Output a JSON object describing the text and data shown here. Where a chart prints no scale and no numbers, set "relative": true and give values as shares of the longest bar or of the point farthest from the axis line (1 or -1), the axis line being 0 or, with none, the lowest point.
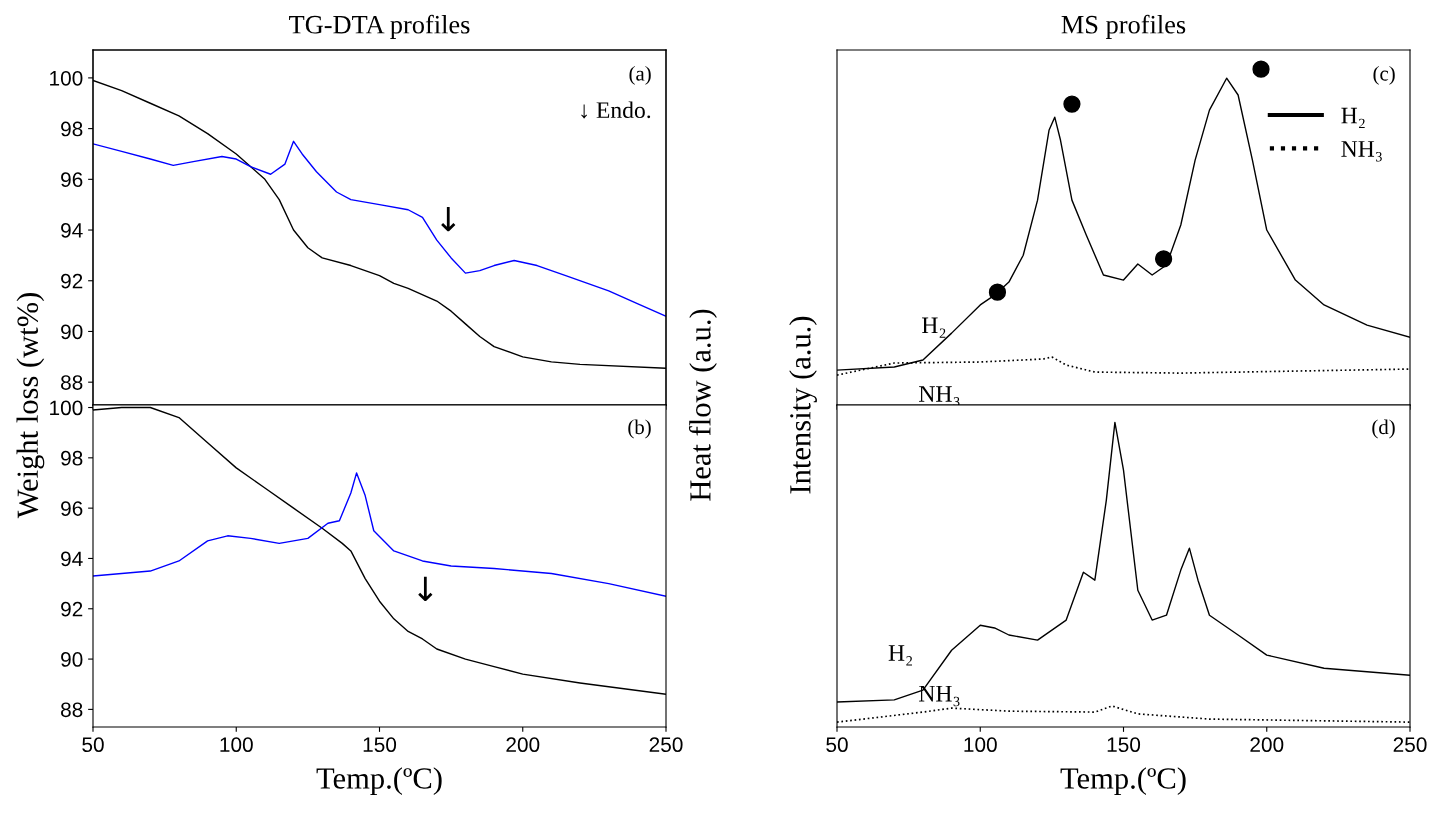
{
  "chart_data": [
    {
      "type": "line",
      "title": "TG-DTA profiles",
      "ylabel": "Weight loss (wt%)",
      "y2label": "Heat flow (a.u.)",
      "xlim": [
        50,
        250
      ],
      "xticks": [
        50,
        100,
        150,
        200,
        250
      ],
      "ylim": [
        87.1,
        101.1
      ],
      "yticks": [
        88,
        90,
        92,
        94,
        96,
        98,
        100
      ],
      "tick_labels": "y",
      "grid": false,
      "legend": false,
      "line_style": "solid",
      "annotations": [
        "(a)",
        "↓ Endo.",
        "↓"
      ],
      "series": [
        {
          "color": "#000000",
          "x": [
            50,
            60,
            70,
            80,
            90,
            100,
            110,
            115,
            120,
            125,
            130,
            140,
            150,
            155,
            160,
            170,
            175,
            180,
            185,
            190,
            200,
            210,
            220,
            250
          ],
          "values": [
            99.9,
            99.5,
            99.0,
            98.5,
            97.8,
            97.0,
            96.0,
            95.2,
            94.0,
            93.3,
            92.9,
            92.6,
            92.2,
            91.9,
            91.7,
            91.2,
            90.8,
            90.3,
            89.8,
            89.4,
            89.0,
            88.8,
            88.7,
            88.55
          ]
        },
        {
          "color": "#0000ff",
          "x": [
            50,
            60,
            70,
            78,
            85,
            95,
            100,
            105,
            112,
            117,
            120,
            123,
            128,
            135,
            140,
            150,
            160,
            165,
            170,
            175,
            180,
            185,
            190,
            197,
            205,
            215,
            230,
            240,
            250
          ],
          "values": [
            97.4,
            97.1,
            96.8,
            96.55,
            96.7,
            96.9,
            96.8,
            96.5,
            96.2,
            96.6,
            97.5,
            97.0,
            96.3,
            95.5,
            95.2,
            95.0,
            94.8,
            94.5,
            93.6,
            92.9,
            92.3,
            92.4,
            92.6,
            92.8,
            92.6,
            92.2,
            91.6,
            91.1,
            90.6
          ]
        }
      ]
    },
    {
      "type": "line",
      "xlabel": "Temp.(ºC)",
      "xlim": [
        50,
        250
      ],
      "xticks": [
        50,
        100,
        150,
        200,
        250
      ],
      "ylim": [
        87.3,
        100.1
      ],
      "yticks": [
        88,
        90,
        92,
        94,
        96,
        98,
        100
      ],
      "grid": false,
      "legend": false,
      "line_style": "solid",
      "annotations": [
        "(b)",
        "↓"
      ],
      "series": [
        {
          "color": "#000000",
          "x": [
            50,
            60,
            70,
            80,
            90,
            100,
            110,
            120,
            130,
            137,
            140,
            145,
            150,
            155,
            160,
            165,
            170,
            180,
            190,
            200,
            220,
            250
          ],
          "values": [
            99.9,
            100.0,
            100.0,
            99.6,
            98.6,
            97.6,
            96.8,
            96.0,
            95.2,
            94.6,
            94.3,
            93.2,
            92.3,
            91.6,
            91.1,
            90.8,
            90.4,
            90.0,
            89.7,
            89.4,
            89.05,
            88.6
          ]
        },
        {
          "color": "#0000ff",
          "x": [
            50,
            70,
            80,
            90,
            97,
            105,
            115,
            125,
            132,
            136,
            140,
            142,
            145,
            148,
            155,
            165,
            175,
            190,
            210,
            230,
            250
          ],
          "values": [
            93.3,
            93.5,
            93.9,
            94.7,
            94.9,
            94.8,
            94.6,
            94.8,
            95.4,
            95.5,
            96.6,
            97.4,
            96.5,
            95.1,
            94.3,
            93.9,
            93.7,
            93.6,
            93.4,
            93.0,
            92.5
          ]
        }
      ]
    },
    {
      "type": "line",
      "title": "MS profiles",
      "ylabel": "Intensity (a.u.)",
      "relative": true,
      "xlim": [
        50,
        250
      ],
      "xticks": [
        50,
        100,
        150,
        200,
        250
      ],
      "tick_labels": false,
      "grid": false,
      "legend": "top right",
      "annotations": [
        "(c)"
      ],
      "series": [
        {
          "name": "H₂",
          "color": "#000000",
          "line_style": "solid",
          "x": [
            50,
            70,
            80,
            90,
            100,
            105,
            110,
            115,
            120,
            124,
            126,
            128,
            132,
            137,
            143,
            150,
            155,
            160,
            165,
            170,
            175,
            180,
            186,
            190,
            195,
            200,
            210,
            220,
            235,
            250
          ],
          "values": [
            0.104,
            0.113,
            0.134,
            0.214,
            0.298,
            0.327,
            0.366,
            0.446,
            0.61,
            0.818,
            0.857,
            0.789,
            0.61,
            0.506,
            0.387,
            0.372,
            0.42,
            0.387,
            0.417,
            0.536,
            0.729,
            0.878,
            0.973,
            0.923,
            0.729,
            0.521,
            0.372,
            0.298,
            0.238,
            0.202
          ]
        },
        {
          "name": "NH₃",
          "color": "#000000",
          "line_style": "dotted",
          "x": [
            50,
            70,
            100,
            122,
            125,
            130,
            140,
            170,
            250
          ],
          "values": [
            0.089,
            0.125,
            0.128,
            0.137,
            0.143,
            0.119,
            0.098,
            0.095,
            0.107
          ]
        },
        {
          "type": "scatter",
          "color": "#000000",
          "marker": "circle",
          "x": [
            106,
            132,
            164,
            198
          ],
          "values": [
            0.336,
            0.896,
            0.435,
            1.0
          ]
        }
      ]
    },
    {
      "type": "line",
      "xlabel": "Temp.(ºC)",
      "relative": true,
      "xlim": [
        50,
        250
      ],
      "xticks": [
        50,
        100,
        150,
        200,
        250
      ],
      "tick_labels": "x",
      "grid": false,
      "legend": false,
      "annotations": [
        "(d)"
      ],
      "series": [
        {
          "name": "H₂",
          "color": "#000000",
          "line_style": "solid",
          "x": [
            50,
            70,
            80,
            90,
            100,
            105,
            110,
            120,
            130,
            136,
            140,
            144,
            147,
            150,
            155,
            160,
            165,
            170,
            173,
            176,
            180,
            190,
            200,
            220,
            250
          ],
          "values": [
            0.082,
            0.089,
            0.121,
            0.252,
            0.334,
            0.325,
            0.302,
            0.285,
            0.351,
            0.508,
            0.482,
            0.744,
            1.0,
            0.843,
            0.449,
            0.351,
            0.367,
            0.515,
            0.587,
            0.482,
            0.367,
            0.302,
            0.236,
            0.193,
            0.17
          ]
        },
        {
          "name": "NH₃",
          "color": "#000000",
          "line_style": "dotted",
          "x": [
            50,
            80,
            90,
            110,
            140,
            146,
            155,
            180,
            250
          ],
          "values": [
            0.016,
            0.049,
            0.062,
            0.052,
            0.049,
            0.069,
            0.043,
            0.026,
            0.016
          ]
        }
      ]
    }
  ]
}
